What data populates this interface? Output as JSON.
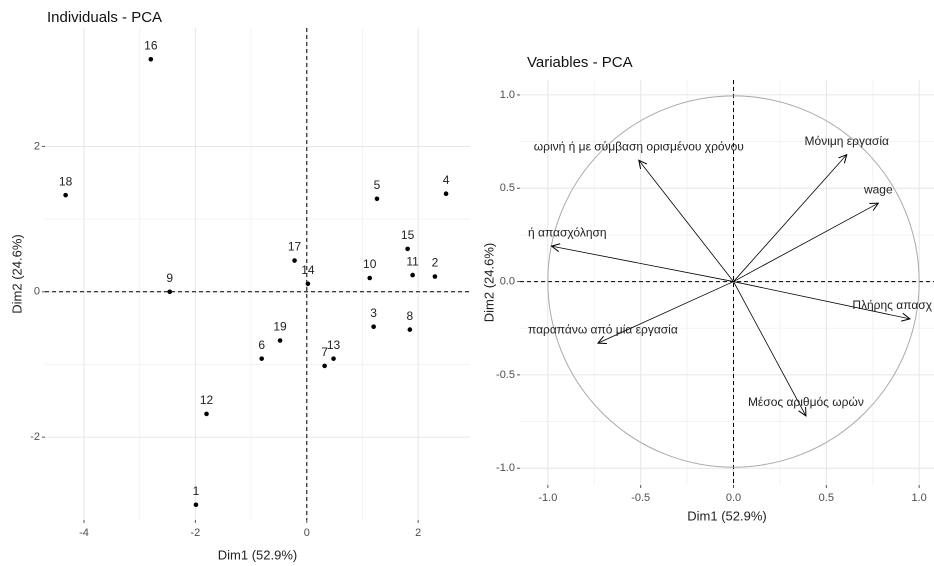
{
  "chart_data": [
    {
      "type": "scatter",
      "title": "Individuals - PCA",
      "x_label": "Dim1 (52.9%)",
      "y_label": "Dim2 (24.6%)",
      "labels": [
        "16",
        "18",
        "9",
        "17",
        "14",
        "19",
        "6",
        "12",
        "1",
        "7",
        "13",
        "3",
        "8",
        "10",
        "5",
        "4",
        "15",
        "11",
        "2"
      ],
      "x": [
        -2.8,
        -4.33,
        -2.46,
        -0.22,
        0.02,
        -0.48,
        -0.81,
        -1.8,
        -1.99,
        0.32,
        0.48,
        1.2,
        1.85,
        1.13,
        1.26,
        2.5,
        1.81,
        1.9,
        2.3
      ],
      "values": [
        3.2,
        1.33,
        0.0,
        0.43,
        0.11,
        -0.67,
        -0.92,
        -1.68,
        -2.93,
        -1.02,
        -0.92,
        -0.48,
        -0.52,
        0.19,
        1.28,
        1.35,
        0.59,
        0.23,
        0.21
      ],
      "color": "#000000",
      "xlim": [
        -4.7,
        2.93
      ],
      "ylim": [
        -3.14,
        3.63
      ],
      "xticks": [
        -4,
        -2,
        0,
        2
      ],
      "yticks": [
        -2,
        0,
        2
      ],
      "grid": true
    },
    {
      "type": "arrows",
      "title": "Variables - PCA",
      "x_label": "Dim1 (52.9%)",
      "y_label": "Dim2 (24.6%)",
      "labels": [
        "Μόνιμη εργασία",
        "wage",
        "Πλήρης απασχ",
        "Μέσος αριθμός ωρών",
        "παραπάνω από μία εργασία",
        "ή απασχόληση",
        "ωρινή ή με σύμβαση ορισμένου χρόνου"
      ],
      "x": [
        0.61,
        0.78,
        0.95,
        0.39,
        -0.73,
        -0.98,
        -0.51
      ],
      "values": [
        0.68,
        0.42,
        -0.2,
        -0.72,
        -0.33,
        0.19,
        0.65
      ],
      "color": "#000000",
      "xlim": [
        -1.15,
        1.08
      ],
      "ylim": [
        -1.09,
        1.08
      ],
      "xticks": [
        {
          "value": -1.0,
          "label": "-1.0"
        },
        -0.5,
        {
          "value": 0.0,
          "label": "0.0"
        },
        0.5,
        {
          "value": 1.0,
          "label": "1.0"
        }
      ],
      "yticks": [
        {
          "value": -1.0,
          "label": "-1.0"
        },
        -0.5,
        {
          "value": 0.0,
          "label": "0.0"
        },
        0.5,
        {
          "value": 1.0,
          "label": "1.0"
        }
      ],
      "grid": true
    }
  ]
}
